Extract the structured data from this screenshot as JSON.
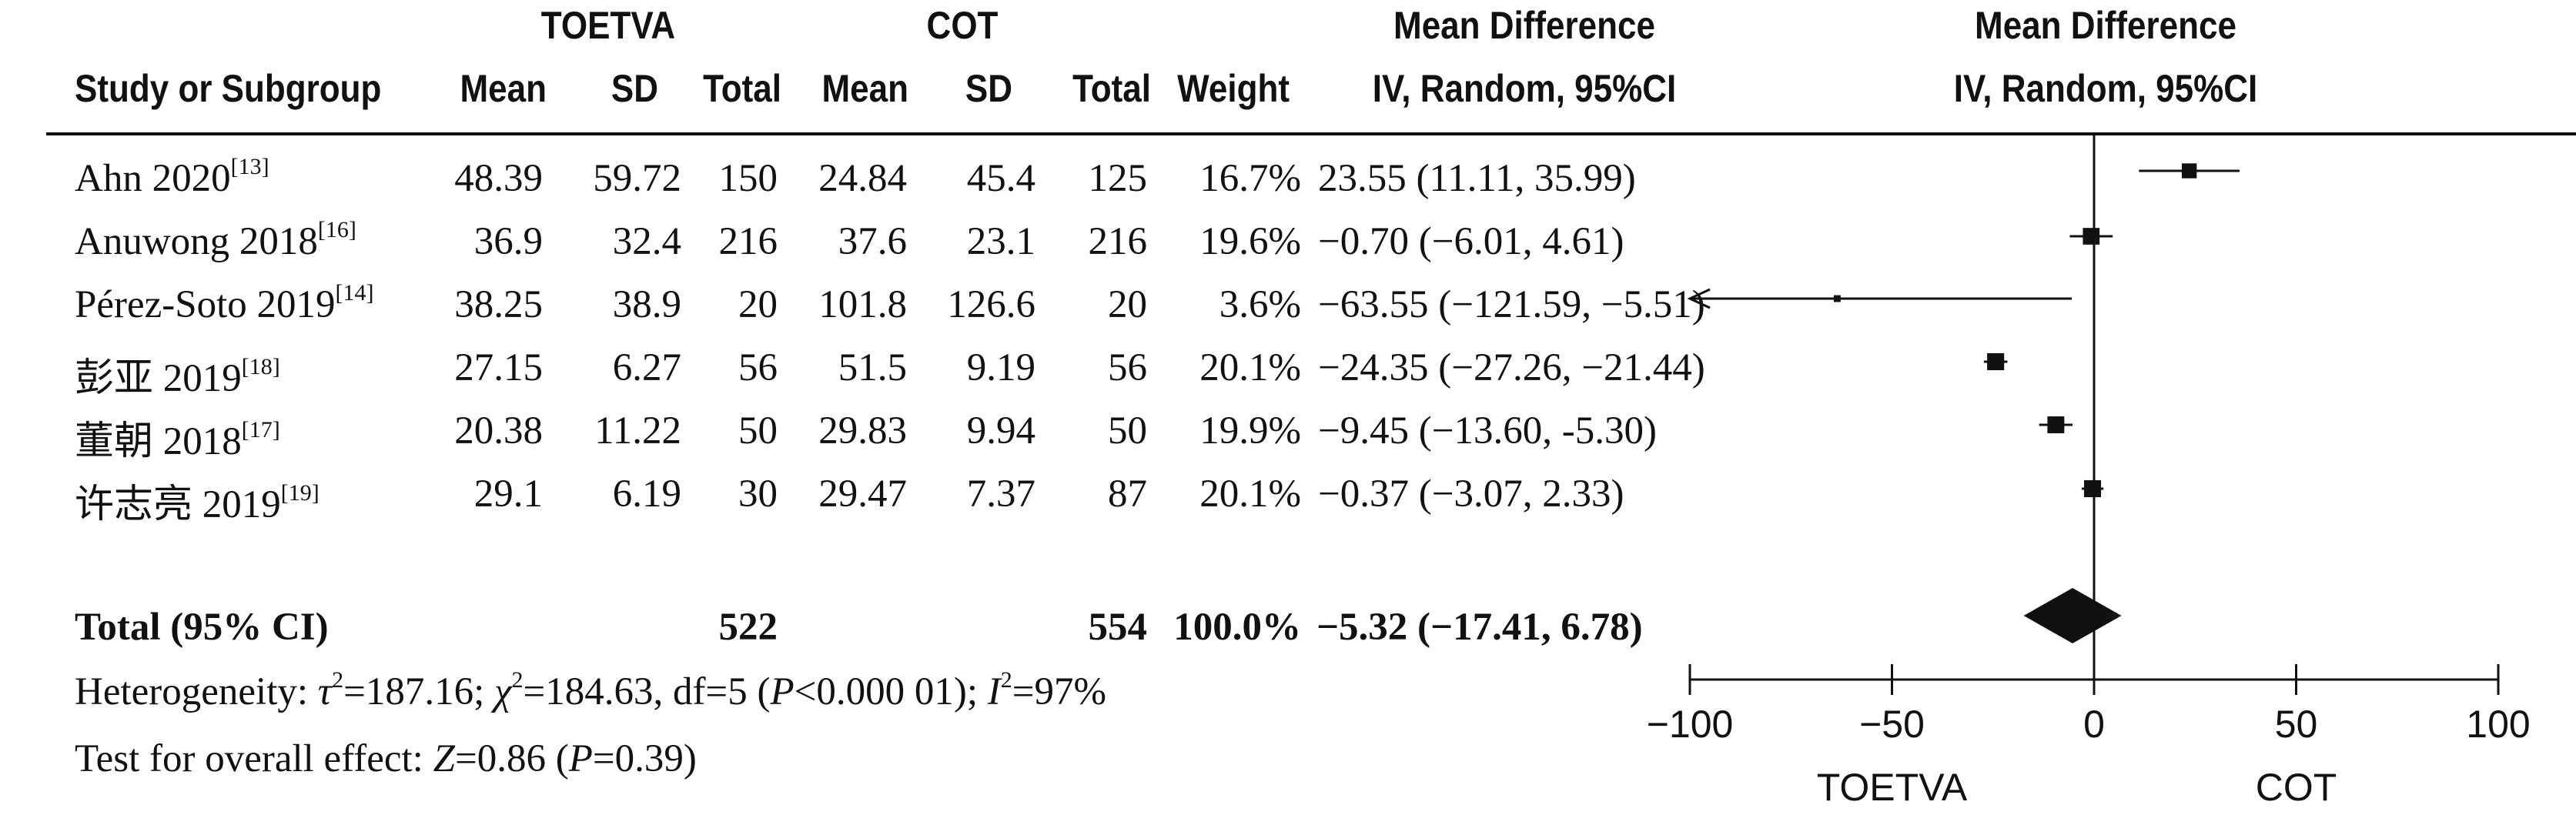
{
  "headers": {
    "group_exp": "TOETVA",
    "group_ctl": "COT",
    "md_top": "Mean Difference",
    "md_plot_top": "Mean Difference",
    "study": "Study or Subgroup",
    "mean1": "Mean",
    "sd1": "SD",
    "total1": "Total",
    "mean2": "Mean",
    "sd2": "SD",
    "total2": "Total",
    "weight": "Weight",
    "md_method": "IV, Random, 95%CI",
    "md_plot_method": "IV, Random, 95%CI"
  },
  "studies": [
    {
      "name": "Ahn 2020",
      "ref": "[13]",
      "mean1": "48.39",
      "sd1": "59.72",
      "total1": "150",
      "mean2": "24.84",
      "sd2": "45.4",
      "total2": "125",
      "weight": "16.7%",
      "ci": "23.55 (11.11, 35.99)"
    },
    {
      "name": "Anuwong 2018",
      "ref": "[16]",
      "mean1": "36.9",
      "sd1": "32.4",
      "total1": "216",
      "mean2": "37.6",
      "sd2": "23.1",
      "total2": "216",
      "weight": "19.6%",
      "ci": "−0.70 (−6.01, 4.61)"
    },
    {
      "name": "Pérez-Soto 2019",
      "ref": "[14]",
      "mean1": "38.25",
      "sd1": "38.9",
      "total1": "20",
      "mean2": "101.8",
      "sd2": "126.6",
      "total2": "20",
      "weight": "3.6%",
      "ci": "−63.55 (−121.59, −5.51)"
    },
    {
      "name": "彭亚 2019",
      "ref": "[18]",
      "mean1": "27.15",
      "sd1": "6.27",
      "total1": "56",
      "mean2": "51.5",
      "sd2": "9.19",
      "total2": "56",
      "weight": "20.1%",
      "ci": "−24.35 (−27.26, −21.44)"
    },
    {
      "name": "董朝 2018",
      "ref": "[17]",
      "mean1": "20.38",
      "sd1": "11.22",
      "total1": "50",
      "mean2": "29.83",
      "sd2": "9.94",
      "total2": "50",
      "weight": "19.9%",
      "ci": "−9.45 (−13.60, -5.30)"
    },
    {
      "name": "许志亮 2019",
      "ref": "[19]",
      "mean1": "29.1",
      "sd1": "6.19",
      "total1": "30",
      "mean2": "29.47",
      "sd2": "7.37",
      "total2": "87",
      "weight": "20.1%",
      "ci": "−0.37 (−3.07, 2.33)"
    }
  ],
  "total": {
    "label": "Total (95% CI)",
    "total1": "522",
    "total2": "554",
    "weight": "100.0%",
    "ci": "−5.32 (−17.41, 6.78)"
  },
  "heterogeneity": {
    "prefix": "Heterogeneity: ",
    "tau_sym": "τ",
    "tau_val": "=187.16; ",
    "chi_sym": "χ",
    "chi_val": "=184.63, df=5 (",
    "p_sym": "P",
    "p_val": "<0.000 01); ",
    "i_sym": "I",
    "i_val": "=97%"
  },
  "overall": {
    "prefix": "Test for overall effect: ",
    "z_sym": "Z",
    "z_val": "=0.86 (",
    "p_sym": "P",
    "p_val": "=0.39)"
  },
  "chart_data": {
    "type": "forest",
    "x_ticks": [
      -100,
      -50,
      0,
      50,
      100
    ],
    "x_tick_labels": [
      "−100",
      "−50",
      "0",
      "50",
      "100"
    ],
    "xlim": [
      -100,
      100
    ],
    "left_label": "TOETVA",
    "right_label": "COT",
    "studies": [
      {
        "md": 23.55,
        "lo": 11.11,
        "hi": 35.99,
        "weight": 16.7
      },
      {
        "md": -0.7,
        "lo": -6.01,
        "hi": 4.61,
        "weight": 19.6
      },
      {
        "md": -63.55,
        "lo": -121.59,
        "hi": -5.51,
        "weight": 3.6
      },
      {
        "md": -24.35,
        "lo": -27.26,
        "hi": -21.44,
        "weight": 20.1
      },
      {
        "md": -9.45,
        "lo": -13.6,
        "hi": -5.3,
        "weight": 19.9
      },
      {
        "md": -0.37,
        "lo": -3.07,
        "hi": 2.33,
        "weight": 20.1
      }
    ],
    "pooled": {
      "md": -5.32,
      "lo": -17.41,
      "hi": 6.78
    }
  }
}
